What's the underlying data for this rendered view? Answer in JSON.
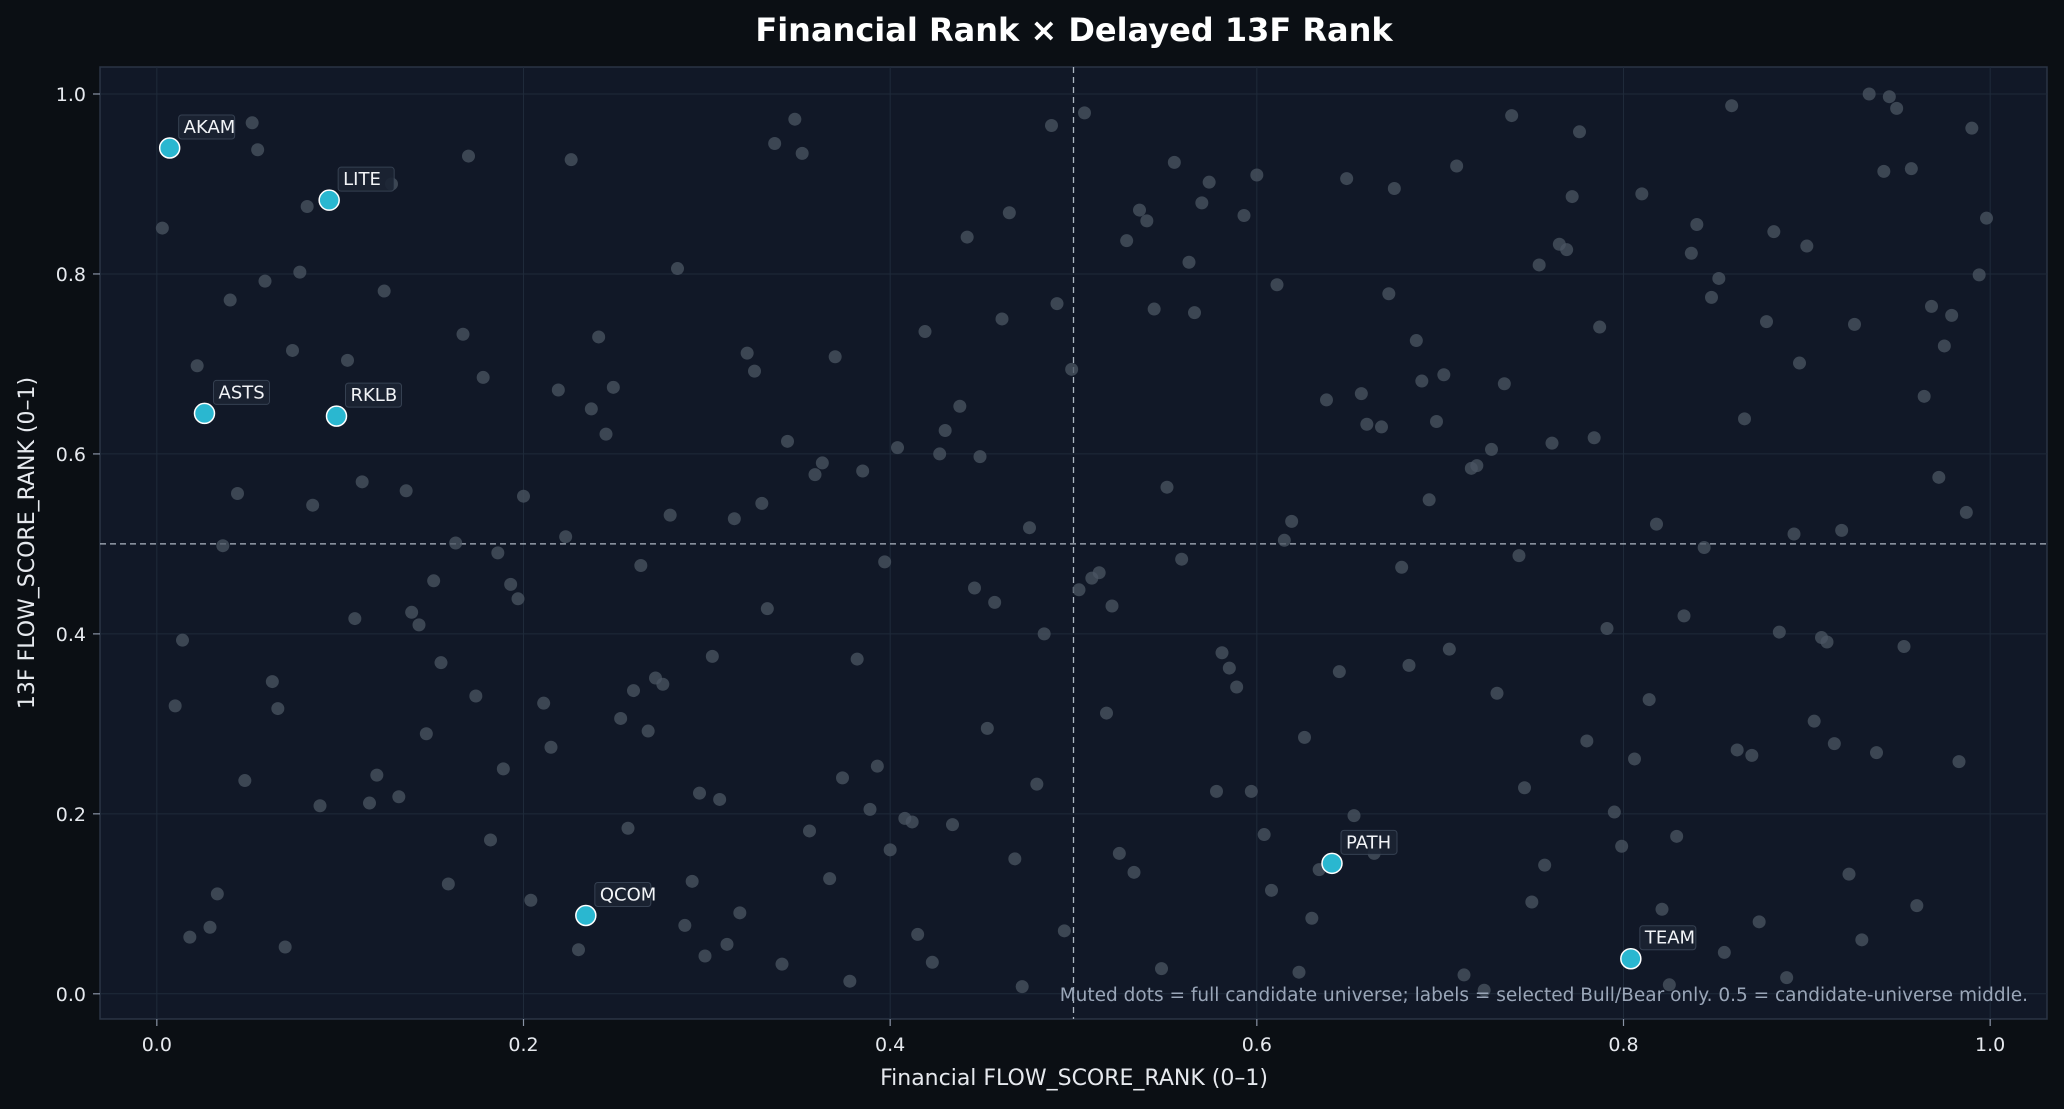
{
  "chart_data": {
    "type": "scatter",
    "title": "Financial Rank × Delayed 13F Rank",
    "xlabel": "Financial FLOW_SCORE_RANK (0–1)",
    "ylabel": "13F FLOW_SCORE_RANK (0–1)",
    "xlim": [
      -0.031,
      1.031
    ],
    "ylim": [
      -0.028,
      1.03
    ],
    "xticks": [
      "0.0",
      "0.2",
      "0.4",
      "0.6",
      "0.8",
      "1.0"
    ],
    "yticks": [
      "0.0",
      "0.2",
      "0.4",
      "0.6",
      "0.8",
      "1.0"
    ],
    "grid": true,
    "reference_lines": {
      "x": 0.5,
      "y": 0.5
    },
    "note": "Muted dots = full candidate universe; labels = selected Bull/Bear only. 0.5 = candidate-universe middle.",
    "colors": {
      "background": "#0b0f14",
      "plot_background": "#111827",
      "universe_dot": "#4b5563",
      "highlight_dot": "#2ab7d0",
      "reference_line": "#c9d2de"
    },
    "highlighted": [
      {
        "label": "AKAM",
        "x": 0.007,
        "y": 0.94
      },
      {
        "label": "LITE",
        "x": 0.094,
        "y": 0.882
      },
      {
        "label": "ASTS",
        "x": 0.026,
        "y": 0.645
      },
      {
        "label": "RKLB",
        "x": 0.098,
        "y": 0.642
      },
      {
        "label": "QCOM",
        "x": 0.234,
        "y": 0.087
      },
      {
        "label": "PATH",
        "x": 0.641,
        "y": 0.145
      },
      {
        "label": "TEAM",
        "x": 0.804,
        "y": 0.039
      }
    ],
    "universe": [
      [
        0.003,
        0.851
      ],
      [
        0.01,
        0.32
      ],
      [
        0.014,
        0.393
      ],
      [
        0.018,
        0.063
      ],
      [
        0.022,
        0.698
      ],
      [
        0.029,
        0.074
      ],
      [
        0.033,
        0.111
      ],
      [
        0.036,
        0.498
      ],
      [
        0.04,
        0.771
      ],
      [
        0.044,
        0.556
      ],
      [
        0.048,
        0.237
      ],
      [
        0.052,
        0.968
      ],
      [
        0.055,
        0.938
      ],
      [
        0.059,
        0.792
      ],
      [
        0.063,
        0.347
      ],
      [
        0.066,
        0.317
      ],
      [
        0.07,
        0.052
      ],
      [
        0.074,
        0.715
      ],
      [
        0.078,
        0.802
      ],
      [
        0.082,
        0.875
      ],
      [
        0.085,
        0.543
      ],
      [
        0.089,
        0.209
      ],
      [
        0.104,
        0.704
      ],
      [
        0.108,
        0.417
      ],
      [
        0.112,
        0.569
      ],
      [
        0.116,
        0.212
      ],
      [
        0.12,
        0.243
      ],
      [
        0.124,
        0.781
      ],
      [
        0.128,
        0.9
      ],
      [
        0.132,
        0.219
      ],
      [
        0.136,
        0.559
      ],
      [
        0.139,
        0.424
      ],
      [
        0.143,
        0.41
      ],
      [
        0.147,
        0.289
      ],
      [
        0.151,
        0.459
      ],
      [
        0.155,
        0.368
      ],
      [
        0.159,
        0.122
      ],
      [
        0.163,
        0.501
      ],
      [
        0.167,
        0.733
      ],
      [
        0.17,
        0.931
      ],
      [
        0.174,
        0.331
      ],
      [
        0.178,
        0.685
      ],
      [
        0.182,
        0.171
      ],
      [
        0.186,
        0.49
      ],
      [
        0.189,
        0.25
      ],
      [
        0.193,
        0.455
      ],
      [
        0.197,
        0.439
      ],
      [
        0.2,
        0.553
      ],
      [
        0.204,
        0.104
      ],
      [
        0.211,
        0.323
      ],
      [
        0.215,
        0.274
      ],
      [
        0.219,
        0.671
      ],
      [
        0.223,
        0.508
      ],
      [
        0.226,
        0.927
      ],
      [
        0.23,
        0.049
      ],
      [
        0.237,
        0.65
      ],
      [
        0.241,
        0.73
      ],
      [
        0.245,
        0.622
      ],
      [
        0.249,
        0.674
      ],
      [
        0.253,
        0.306
      ],
      [
        0.257,
        0.184
      ],
      [
        0.26,
        0.337
      ],
      [
        0.264,
        0.476
      ],
      [
        0.268,
        0.292
      ],
      [
        0.272,
        0.351
      ],
      [
        0.276,
        0.344
      ],
      [
        0.28,
        0.532
      ],
      [
        0.284,
        0.806
      ],
      [
        0.288,
        0.076
      ],
      [
        0.292,
        0.125
      ],
      [
        0.296,
        0.223
      ],
      [
        0.299,
        0.042
      ],
      [
        0.303,
        0.375
      ],
      [
        0.307,
        0.216
      ],
      [
        0.311,
        0.055
      ],
      [
        0.315,
        0.528
      ],
      [
        0.318,
        0.09
      ],
      [
        0.322,
        0.712
      ],
      [
        0.326,
        0.692
      ],
      [
        0.33,
        0.545
      ],
      [
        0.333,
        0.428
      ],
      [
        0.337,
        0.945
      ],
      [
        0.341,
        0.033
      ],
      [
        0.344,
        0.614
      ],
      [
        0.348,
        0.972
      ],
      [
        0.352,
        0.934
      ],
      [
        0.356,
        0.181
      ],
      [
        0.359,
        0.577
      ],
      [
        0.363,
        0.59
      ],
      [
        0.367,
        0.128
      ],
      [
        0.37,
        0.708
      ],
      [
        0.374,
        0.24
      ],
      [
        0.378,
        0.014
      ],
      [
        0.382,
        0.372
      ],
      [
        0.385,
        0.581
      ],
      [
        0.389,
        0.205
      ],
      [
        0.393,
        0.253
      ],
      [
        0.397,
        0.48
      ],
      [
        0.4,
        0.16
      ],
      [
        0.404,
        0.607
      ],
      [
        0.408,
        0.195
      ],
      [
        0.412,
        0.191
      ],
      [
        0.415,
        0.066
      ],
      [
        0.419,
        0.736
      ],
      [
        0.423,
        0.035
      ],
      [
        0.427,
        0.6
      ],
      [
        0.43,
        0.626
      ],
      [
        0.434,
        0.188
      ],
      [
        0.438,
        0.653
      ],
      [
        0.442,
        0.841
      ],
      [
        0.446,
        0.451
      ],
      [
        0.449,
        0.597
      ],
      [
        0.453,
        0.295
      ],
      [
        0.457,
        0.435
      ],
      [
        0.461,
        0.75
      ],
      [
        0.465,
        0.868
      ],
      [
        0.468,
        0.15
      ],
      [
        0.472,
        0.008
      ],
      [
        0.476,
        0.518
      ],
      [
        0.48,
        0.233
      ],
      [
        0.484,
        0.4
      ],
      [
        0.488,
        0.965
      ],
      [
        0.491,
        0.767
      ],
      [
        0.495,
        0.07
      ],
      [
        0.499,
        0.694
      ],
      [
        0.503,
        0.449
      ],
      [
        0.506,
        0.979
      ],
      [
        0.51,
        0.462
      ],
      [
        0.514,
        0.468
      ],
      [
        0.518,
        0.312
      ],
      [
        0.521,
        0.431
      ],
      [
        0.525,
        0.156
      ],
      [
        0.529,
        0.837
      ],
      [
        0.533,
        0.135
      ],
      [
        0.536,
        0.871
      ],
      [
        0.54,
        0.859
      ],
      [
        0.544,
        0.761
      ],
      [
        0.548,
        0.028
      ],
      [
        0.551,
        0.563
      ],
      [
        0.555,
        0.924
      ],
      [
        0.559,
        0.483
      ],
      [
        0.563,
        0.813
      ],
      [
        0.566,
        0.757
      ],
      [
        0.57,
        0.879
      ],
      [
        0.574,
        0.902
      ],
      [
        0.578,
        0.225
      ],
      [
        0.581,
        0.379
      ],
      [
        0.585,
        0.362
      ],
      [
        0.589,
        0.341
      ],
      [
        0.593,
        0.865
      ],
      [
        0.597,
        0.225
      ],
      [
        0.6,
        0.91
      ],
      [
        0.604,
        0.177
      ],
      [
        0.608,
        0.115
      ],
      [
        0.611,
        0.788
      ],
      [
        0.615,
        0.504
      ],
      [
        0.619,
        0.525
      ],
      [
        0.623,
        0.024
      ],
      [
        0.626,
        0.285
      ],
      [
        0.63,
        0.084
      ],
      [
        0.634,
        0.138
      ],
      [
        0.638,
        0.66
      ],
      [
        0.645,
        0.358
      ],
      [
        0.649,
        0.906
      ],
      [
        0.653,
        0.198
      ],
      [
        0.657,
        0.667
      ],
      [
        0.66,
        0.633
      ],
      [
        0.664,
        0.156
      ],
      [
        0.668,
        0.63
      ],
      [
        0.672,
        0.778
      ],
      [
        0.675,
        0.895
      ],
      [
        0.679,
        0.474
      ],
      [
        0.683,
        0.365
      ],
      [
        0.687,
        0.726
      ],
      [
        0.69,
        0.681
      ],
      [
        0.694,
        0.549
      ],
      [
        0.698,
        0.636
      ],
      [
        0.702,
        0.688
      ],
      [
        0.705,
        0.383
      ],
      [
        0.709,
        0.92
      ],
      [
        0.713,
        0.021
      ],
      [
        0.717,
        0.584
      ],
      [
        0.72,
        0.587
      ],
      [
        0.724,
        0.004
      ],
      [
        0.728,
        0.605
      ],
      [
        0.731,
        0.334
      ],
      [
        0.735,
        0.678
      ],
      [
        0.739,
        0.976
      ],
      [
        0.743,
        0.487
      ],
      [
        0.746,
        0.229
      ],
      [
        0.75,
        0.102
      ],
      [
        0.754,
        0.81
      ],
      [
        0.757,
        0.143
      ],
      [
        0.761,
        0.612
      ],
      [
        0.765,
        0.833
      ],
      [
        0.769,
        0.827
      ],
      [
        0.772,
        0.886
      ],
      [
        0.776,
        0.958
      ],
      [
        0.78,
        0.281
      ],
      [
        0.784,
        0.618
      ],
      [
        0.787,
        0.741
      ],
      [
        0.791,
        0.406
      ],
      [
        0.795,
        0.202
      ],
      [
        0.799,
        0.164
      ],
      [
        0.806,
        0.261
      ],
      [
        0.81,
        0.889
      ],
      [
        0.814,
        0.327
      ],
      [
        0.818,
        0.522
      ],
      [
        0.821,
        0.094
      ],
      [
        0.825,
        0.01
      ],
      [
        0.829,
        0.175
      ],
      [
        0.833,
        0.42
      ],
      [
        0.837,
        0.823
      ],
      [
        0.84,
        0.855
      ],
      [
        0.844,
        0.496
      ],
      [
        0.848,
        0.774
      ],
      [
        0.852,
        0.795
      ],
      [
        0.855,
        0.046
      ],
      [
        0.859,
        0.987
      ],
      [
        0.862,
        0.271
      ],
      [
        0.866,
        0.639
      ],
      [
        0.87,
        0.265
      ],
      [
        0.874,
        0.08
      ],
      [
        0.878,
        0.747
      ],
      [
        0.882,
        0.847
      ],
      [
        0.885,
        0.402
      ],
      [
        0.889,
        0.018
      ],
      [
        0.893,
        0.511
      ],
      [
        0.896,
        0.701
      ],
      [
        0.9,
        0.831
      ],
      [
        0.904,
        0.303
      ],
      [
        0.908,
        0.396
      ],
      [
        0.911,
        0.391
      ],
      [
        0.915,
        0.278
      ],
      [
        0.919,
        0.515
      ],
      [
        0.923,
        0.133
      ],
      [
        0.926,
        0.744
      ],
      [
        0.93,
        0.06
      ],
      [
        0.934,
        1.0
      ],
      [
        0.938,
        0.268
      ],
      [
        0.942,
        0.914
      ],
      [
        0.945,
        0.997
      ],
      [
        0.949,
        0.984
      ],
      [
        0.953,
        0.386
      ],
      [
        0.957,
        0.917
      ],
      [
        0.96,
        0.098
      ],
      [
        0.964,
        0.664
      ],
      [
        0.968,
        0.764
      ],
      [
        0.972,
        0.574
      ],
      [
        0.975,
        0.72
      ],
      [
        0.979,
        0.754
      ],
      [
        0.983,
        0.258
      ],
      [
        0.987,
        0.535
      ],
      [
        0.99,
        0.962
      ],
      [
        0.994,
        0.799
      ],
      [
        0.998,
        0.862
      ]
    ]
  }
}
